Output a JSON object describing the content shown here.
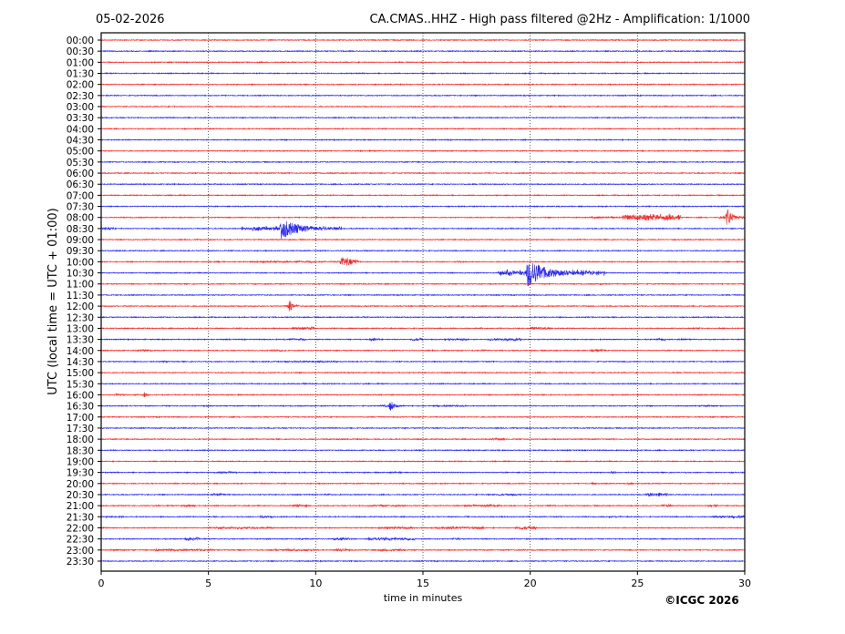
{
  "header": {
    "date": "05-02-2026",
    "title": "CA.CMAS..HHZ - High pass filtered @2Hz - Amplification: 1/1000"
  },
  "footer": {
    "copyright": "©ICGC 2026"
  },
  "chart_data": {
    "type": "line",
    "subtype": "helicorder",
    "xlabel": "time in minutes",
    "ylabel": "UTC (local time = UTC + 01:00)",
    "xlim": [
      0,
      30
    ],
    "xticks": [
      "0",
      "5",
      "10",
      "15",
      "20",
      "25",
      "30"
    ],
    "grid": "vertical dotted at every 5 minutes",
    "colors": {
      "even_rows": "#ff0000",
      "odd_rows": "#0000ff"
    },
    "rows": [
      "00:00",
      "00:30",
      "01:00",
      "01:30",
      "02:00",
      "02:30",
      "03:00",
      "03:30",
      "04:00",
      "04:30",
      "05:00",
      "05:30",
      "06:00",
      "06:30",
      "07:00",
      "07:30",
      "08:00",
      "08:30",
      "09:00",
      "09:30",
      "10:00",
      "10:30",
      "11:00",
      "11:30",
      "12:00",
      "12:30",
      "13:00",
      "13:30",
      "14:00",
      "14:30",
      "15:00",
      "15:30",
      "16:00",
      "16:30",
      "17:00",
      "17:30",
      "18:00",
      "18:30",
      "19:00",
      "19:30",
      "20:00",
      "20:30",
      "21:00",
      "21:30",
      "22:00",
      "22:30",
      "23:00",
      "23:30"
    ],
    "events_note": "signal bursts: row, start/end minute, peak relative amplitude (1 = trace spacing)",
    "events": [
      {
        "row": "08:00",
        "start": 22.8,
        "end": 24.2,
        "peak": 0.12
      },
      {
        "row": "08:00",
        "start": 24.3,
        "end": 27.0,
        "peak": 0.35
      },
      {
        "row": "08:00",
        "start": 28.8,
        "end": 30.0,
        "peak": 0.9,
        "peak_at": 29.2
      },
      {
        "row": "08:30",
        "start": 0.0,
        "end": 0.6,
        "peak": 0.15
      },
      {
        "row": "08:30",
        "start": 6.5,
        "end": 11.2,
        "peak": 1.0,
        "peak_at": 8.4
      },
      {
        "row": "10:00",
        "start": 5.4,
        "end": 5.7,
        "peak": 0.1
      },
      {
        "row": "10:00",
        "start": 7.0,
        "end": 12.0,
        "peak": 0.45,
        "peak_at": 11.2
      },
      {
        "row": "10:00",
        "start": 16.5,
        "end": 16.9,
        "peak": 0.1
      },
      {
        "row": "10:30",
        "start": 18.5,
        "end": 23.5,
        "peak": 1.3,
        "peak_at": 19.9
      },
      {
        "row": "11:00",
        "start": 23.2,
        "end": 23.5,
        "peak": 0.1
      },
      {
        "row": "12:00",
        "start": 8.6,
        "end": 9.2,
        "peak": 0.6,
        "peak_at": 8.8
      },
      {
        "row": "12:30",
        "start": 12.2,
        "end": 12.5,
        "peak": 0.1
      },
      {
        "row": "13:00",
        "start": 8.9,
        "end": 10.0,
        "peak": 0.15
      },
      {
        "row": "13:00",
        "start": 17.4,
        "end": 17.8,
        "peak": 0.08
      },
      {
        "row": "13:00",
        "start": 20.0,
        "end": 21.0,
        "peak": 0.15
      },
      {
        "row": "13:00",
        "start": 27.6,
        "end": 27.9,
        "peak": 0.1
      },
      {
        "row": "13:30",
        "start": 8.5,
        "end": 9.6,
        "peak": 0.1
      },
      {
        "row": "13:30",
        "start": 12.5,
        "end": 13.0,
        "peak": 0.15
      },
      {
        "row": "13:30",
        "start": 14.4,
        "end": 15.0,
        "peak": 0.15
      },
      {
        "row": "13:30",
        "start": 16.0,
        "end": 17.2,
        "peak": 0.12
      },
      {
        "row": "13:30",
        "start": 18.0,
        "end": 19.6,
        "peak": 0.15
      },
      {
        "row": "13:30",
        "start": 25.9,
        "end": 26.3,
        "peak": 0.15
      },
      {
        "row": "13:30",
        "start": 26.9,
        "end": 27.2,
        "peak": 0.1
      },
      {
        "row": "14:00",
        "start": 1.7,
        "end": 2.4,
        "peak": 0.12
      },
      {
        "row": "14:00",
        "start": 7.8,
        "end": 8.6,
        "peak": 0.12
      },
      {
        "row": "14:00",
        "start": 17.7,
        "end": 18.0,
        "peak": 0.12
      },
      {
        "row": "14:00",
        "start": 22.8,
        "end": 23.5,
        "peak": 0.15
      },
      {
        "row": "14:30",
        "start": 2.9,
        "end": 3.1,
        "peak": 0.1
      },
      {
        "row": "14:30",
        "start": 8.5,
        "end": 11.0,
        "peak": 0.1
      },
      {
        "row": "15:30",
        "start": 9.3,
        "end": 9.6,
        "peak": 0.08
      },
      {
        "row": "16:00",
        "start": 0.6,
        "end": 1.1,
        "peak": 0.12
      },
      {
        "row": "16:00",
        "start": 1.5,
        "end": 2.6,
        "peak": 0.25,
        "peak_at": 2.0
      },
      {
        "row": "16:30",
        "start": 4.9,
        "end": 5.1,
        "peak": 0.08
      },
      {
        "row": "16:30",
        "start": 13.0,
        "end": 14.2,
        "peak": 0.5,
        "peak_at": 13.5
      },
      {
        "row": "16:30",
        "start": 15.5,
        "end": 17.0,
        "peak": 0.1
      },
      {
        "row": "16:30",
        "start": 28.0,
        "end": 28.6,
        "peak": 0.1
      },
      {
        "row": "18:00",
        "start": 10.6,
        "end": 11.3,
        "peak": 0.08
      },
      {
        "row": "18:00",
        "start": 18.2,
        "end": 18.8,
        "peak": 0.15
      },
      {
        "row": "19:30",
        "start": 5.2,
        "end": 6.3,
        "peak": 0.12
      },
      {
        "row": "19:30",
        "start": 13.5,
        "end": 14.0,
        "peak": 0.08
      },
      {
        "row": "19:30",
        "start": 23.7,
        "end": 24.0,
        "peak": 0.15
      },
      {
        "row": "20:00",
        "start": 3.3,
        "end": 3.5,
        "peak": 0.08
      },
      {
        "row": "20:00",
        "start": 22.8,
        "end": 23.1,
        "peak": 0.12
      },
      {
        "row": "20:00",
        "start": 24.5,
        "end": 24.8,
        "peak": 0.12
      },
      {
        "row": "20:00",
        "start": 28.4,
        "end": 28.8,
        "peak": 0.08
      },
      {
        "row": "20:30",
        "start": 5.2,
        "end": 5.8,
        "peak": 0.15
      },
      {
        "row": "20:30",
        "start": 10.4,
        "end": 10.7,
        "peak": 0.08
      },
      {
        "row": "20:30",
        "start": 15.4,
        "end": 15.6,
        "peak": 0.08
      },
      {
        "row": "20:30",
        "start": 18.0,
        "end": 19.6,
        "peak": 0.1
      },
      {
        "row": "20:30",
        "start": 25.4,
        "end": 26.4,
        "peak": 0.2
      },
      {
        "row": "21:00",
        "start": 3.7,
        "end": 4.4,
        "peak": 0.12
      },
      {
        "row": "21:00",
        "start": 8.9,
        "end": 9.6,
        "peak": 0.15
      },
      {
        "row": "21:00",
        "start": 12.4,
        "end": 14.2,
        "peak": 0.1
      },
      {
        "row": "21:00",
        "start": 16.9,
        "end": 18.6,
        "peak": 0.12
      },
      {
        "row": "21:00",
        "start": 20.7,
        "end": 21.0,
        "peak": 0.1
      },
      {
        "row": "21:00",
        "start": 26.1,
        "end": 26.6,
        "peak": 0.15
      },
      {
        "row": "21:00",
        "start": 28.3,
        "end": 28.8,
        "peak": 0.15
      },
      {
        "row": "21:30",
        "start": 0.2,
        "end": 1.1,
        "peak": 0.1
      },
      {
        "row": "21:30",
        "start": 7.4,
        "end": 8.0,
        "peak": 0.15
      },
      {
        "row": "21:30",
        "start": 17.0,
        "end": 17.2,
        "peak": 0.08
      },
      {
        "row": "21:30",
        "start": 23.5,
        "end": 24.2,
        "peak": 0.1
      },
      {
        "row": "21:30",
        "start": 28.4,
        "end": 30.0,
        "peak": 0.15
      },
      {
        "row": "22:00",
        "start": 0.0,
        "end": 0.3,
        "peak": 0.1
      },
      {
        "row": "22:00",
        "start": 5.0,
        "end": 8.0,
        "peak": 0.12
      },
      {
        "row": "22:00",
        "start": 12.9,
        "end": 14.6,
        "peak": 0.12
      },
      {
        "row": "22:00",
        "start": 15.4,
        "end": 17.9,
        "peak": 0.15
      },
      {
        "row": "22:00",
        "start": 19.3,
        "end": 20.3,
        "peak": 0.18
      },
      {
        "row": "22:30",
        "start": 3.9,
        "end": 4.6,
        "peak": 0.18
      },
      {
        "row": "22:30",
        "start": 9.2,
        "end": 9.4,
        "peak": 0.1
      },
      {
        "row": "22:30",
        "start": 10.8,
        "end": 11.6,
        "peak": 0.15
      },
      {
        "row": "22:30",
        "start": 12.4,
        "end": 14.6,
        "peak": 0.18
      },
      {
        "row": "22:30",
        "start": 16.4,
        "end": 16.8,
        "peak": 0.12
      },
      {
        "row": "22:30",
        "start": 19.8,
        "end": 20.0,
        "peak": 0.1
      },
      {
        "row": "23:00",
        "start": 0.4,
        "end": 1.6,
        "peak": 0.08
      },
      {
        "row": "23:00",
        "start": 2.5,
        "end": 5.2,
        "peak": 0.12
      },
      {
        "row": "23:00",
        "start": 6.5,
        "end": 6.7,
        "peak": 0.08
      },
      {
        "row": "23:00",
        "start": 7.9,
        "end": 10.0,
        "peak": 0.12
      },
      {
        "row": "23:00",
        "start": 10.8,
        "end": 11.6,
        "peak": 0.15
      },
      {
        "row": "23:00",
        "start": 12.9,
        "end": 14.2,
        "peak": 0.12
      },
      {
        "row": "23:00",
        "start": 19.4,
        "end": 19.8,
        "peak": 0.08
      },
      {
        "row": "23:30",
        "start": 2.0,
        "end": 3.6,
        "peak": 0.05
      }
    ]
  }
}
